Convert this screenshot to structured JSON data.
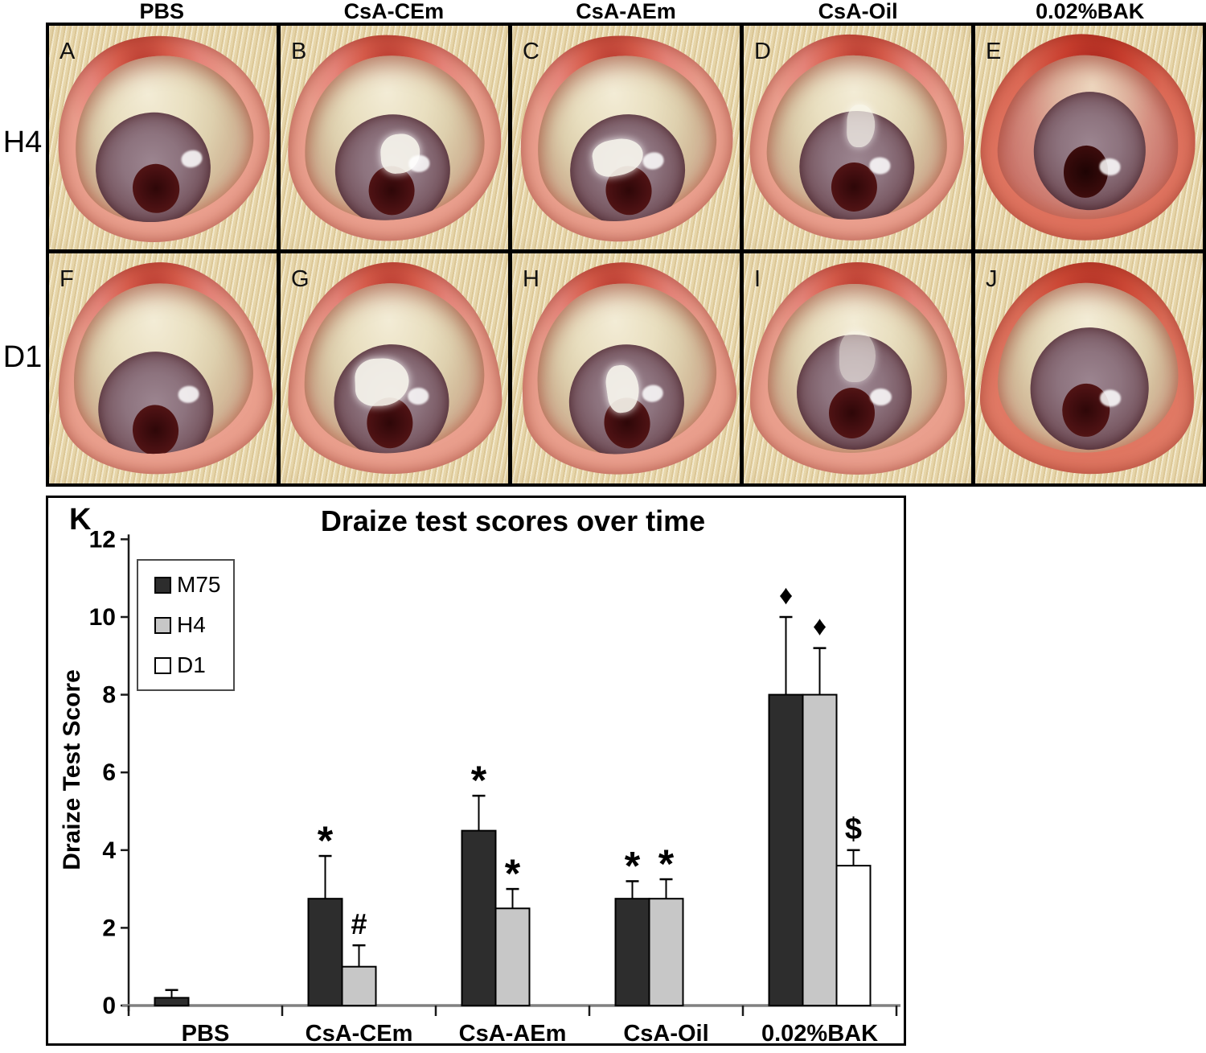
{
  "figure": {
    "columns": [
      "PBS",
      "CsA-CEm",
      "CsA-AEm",
      "CsA-Oil",
      "0.02%BAK"
    ],
    "rows": [
      "H4",
      "D1"
    ],
    "panels": [
      {
        "letter": "A",
        "row": "H4",
        "column": "PBS"
      },
      {
        "letter": "B",
        "row": "H4",
        "column": "CsA-CEm"
      },
      {
        "letter": "C",
        "row": "H4",
        "column": "CsA-AEm"
      },
      {
        "letter": "D",
        "row": "H4",
        "column": "CsA-Oil"
      },
      {
        "letter": "E",
        "row": "H4",
        "column": "0.02%BAK"
      },
      {
        "letter": "F",
        "row": "D1",
        "column": "PBS"
      },
      {
        "letter": "G",
        "row": "D1",
        "column": "CsA-CEm"
      },
      {
        "letter": "H",
        "row": "D1",
        "column": "CsA-AEm"
      },
      {
        "letter": "I",
        "row": "D1",
        "column": "CsA-Oil"
      },
      {
        "letter": "J",
        "row": "D1",
        "column": "0.02%BAK"
      }
    ]
  },
  "chart_data": {
    "type": "bar",
    "panel_label": "K",
    "title": "Draize test scores over time",
    "xlabel": "",
    "ylabel": "Draize Test Score",
    "ylim": [
      0,
      12
    ],
    "yticks": [
      0,
      2,
      4,
      6,
      8,
      10,
      12
    ],
    "grid": false,
    "legend_position": "upper-left-inside",
    "categories": [
      "PBS",
      "CsA-CEm",
      "CsA-AEm",
      "CsA-Oil",
      "0.02%BAK"
    ],
    "series": [
      {
        "name": "M75",
        "color": "#2d2d2d",
        "values": [
          0.2,
          2.75,
          4.5,
          2.75,
          8.0
        ],
        "errors": [
          0.2,
          1.1,
          0.9,
          0.45,
          2.0
        ],
        "annotations": [
          "",
          "*",
          "*",
          "*",
          "♦"
        ]
      },
      {
        "name": "H4",
        "color": "#c7c7c7",
        "values": [
          0,
          1.0,
          2.5,
          2.75,
          8.0
        ],
        "errors": [
          0,
          0.55,
          0.5,
          0.5,
          1.2
        ],
        "annotations": [
          "",
          "#",
          "*",
          "*",
          "♦"
        ]
      },
      {
        "name": "D1",
        "color": "#ffffff",
        "values": [
          0,
          0,
          0,
          0,
          3.6
        ],
        "errors": [
          0,
          0,
          0,
          0,
          0.4
        ],
        "annotations": [
          "",
          "",
          "",
          "",
          "$"
        ]
      }
    ]
  }
}
